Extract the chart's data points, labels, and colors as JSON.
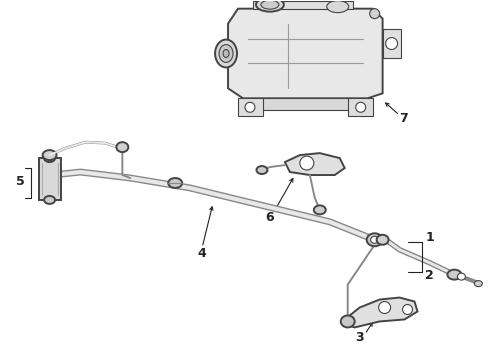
{
  "background_color": "#ffffff",
  "figure_width": 4.9,
  "figure_height": 3.6,
  "dpi": 100,
  "line_color": "#444444",
  "label_color": "#222222",
  "label_fontsize": 9,
  "lw_thick": 2.0,
  "lw_medium": 1.4,
  "lw_thin": 0.8
}
